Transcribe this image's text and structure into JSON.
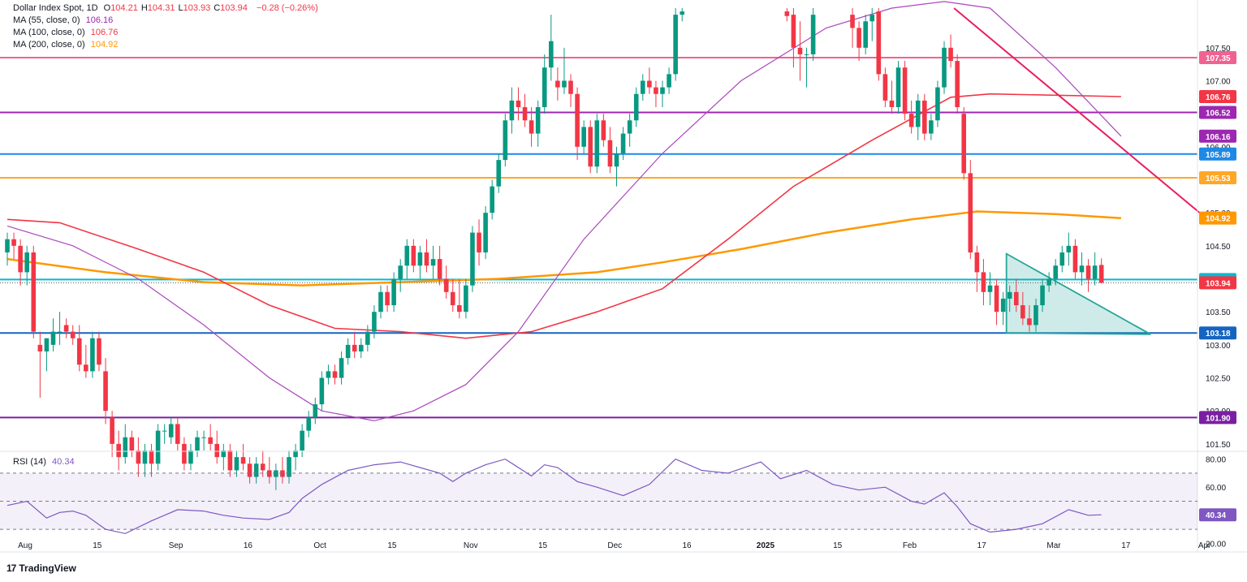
{
  "header": {
    "symbol": "Dollar Index Spot, 1D",
    "ohlc": [
      {
        "k": "O",
        "v": "104.21"
      },
      {
        "k": "H",
        "v": "104.31"
      },
      {
        "k": "L",
        "v": "103.93"
      },
      {
        "k": "C",
        "v": "103.94"
      }
    ],
    "change": "−0.28 (−0.26%)",
    "ma": [
      {
        "label": "MA (55, close, 0)",
        "value": "106.16",
        "color": "#9c27b0"
      },
      {
        "label": "MA (100, close, 0)",
        "value": "106.76",
        "color": "#f23645"
      },
      {
        "label": "MA (200, close, 0)",
        "value": "104.92",
        "color": "#ff9800"
      }
    ],
    "rsi_label": "RSI (14)",
    "rsi_value": "40.34"
  },
  "branding": {
    "name": "TradingView"
  },
  "chart_data": {
    "type": "candlestick",
    "ylim": [
      101.4,
      108.1
    ],
    "x_ticks": [
      "Aug",
      "15",
      "Sep",
      "16",
      "Oct",
      "15",
      "Nov",
      "15",
      "Dec",
      "16",
      "2025",
      "15",
      "Feb",
      "17",
      "Mar",
      "17",
      "Apr",
      "11"
    ],
    "x_tick_pos": [
      0,
      11,
      23,
      34,
      45,
      56,
      68,
      79,
      90,
      101,
      113,
      124,
      135,
      146,
      157,
      168,
      180,
      191
    ],
    "y_ticks": [
      "107.50",
      "107.00",
      "106.00",
      "105.00",
      "104.50",
      "103.50",
      "103.00",
      "102.50",
      "102.00",
      "101.50"
    ],
    "horizontal_levels": [
      {
        "value": 107.35,
        "label": "107.35",
        "color": "#f06292"
      },
      {
        "value": 106.52,
        "label": "106.52",
        "color": "#9c27b0"
      },
      {
        "value": 105.89,
        "label": "105.89",
        "color": "#1e88e5"
      },
      {
        "value": 105.53,
        "label": "105.53",
        "color": "#ffa726"
      },
      {
        "value": 103.99,
        "label": "103.99",
        "color": "#00bcd4"
      },
      {
        "value": 103.18,
        "label": "103.18",
        "color": "#1565c0"
      },
      {
        "value": 101.9,
        "label": "101.90",
        "color": "#7b1fa2"
      }
    ],
    "price_tags": [
      {
        "value": 106.76,
        "label": "106.76",
        "color": "#f23645"
      },
      {
        "value": 106.16,
        "label": "106.16",
        "color": "#9c27b0"
      },
      {
        "value": 104.92,
        "label": "104.92",
        "color": "#ff9800"
      },
      {
        "value": 103.94,
        "label": "103.94",
        "color": "#f23645"
      }
    ],
    "close_price": 103.94,
    "candles": [
      {
        "i": 0,
        "o": 104.4,
        "h": 104.7,
        "l": 104.2,
        "c": 104.6
      },
      {
        "i": 1,
        "o": 104.6,
        "h": 104.7,
        "l": 104.3,
        "c": 104.5
      },
      {
        "i": 2,
        "o": 104.5,
        "h": 104.6,
        "l": 103.9,
        "c": 104.1
      },
      {
        "i": 3,
        "o": 104.1,
        "h": 104.5,
        "l": 103.9,
        "c": 104.4
      },
      {
        "i": 4,
        "o": 104.4,
        "h": 104.5,
        "l": 103.1,
        "c": 103.2
      },
      {
        "i": 5,
        "o": 103.0,
        "h": 103.2,
        "l": 102.2,
        "c": 102.9
      },
      {
        "i": 6,
        "o": 102.9,
        "h": 103.1,
        "l": 102.6,
        "c": 103.1
      },
      {
        "i": 7,
        "o": 103.0,
        "h": 103.4,
        "l": 102.9,
        "c": 103.2
      },
      {
        "i": 8,
        "o": 103.2,
        "h": 103.5,
        "l": 103.0,
        "c": 103.2
      },
      {
        "i": 9,
        "o": 103.3,
        "h": 103.4,
        "l": 103.1,
        "c": 103.2
      },
      {
        "i": 10,
        "o": 103.2,
        "h": 103.3,
        "l": 103.0,
        "c": 103.1
      },
      {
        "i": 11,
        "o": 103.1,
        "h": 103.3,
        "l": 102.6,
        "c": 102.7
      },
      {
        "i": 12,
        "o": 102.7,
        "h": 103.0,
        "l": 102.5,
        "c": 102.6
      },
      {
        "i": 13,
        "o": 102.6,
        "h": 103.2,
        "l": 102.5,
        "c": 103.1
      },
      {
        "i": 14,
        "o": 103.1,
        "h": 103.2,
        "l": 102.6,
        "c": 102.7
      },
      {
        "i": 15,
        "o": 102.6,
        "h": 102.8,
        "l": 101.8,
        "c": 102.0
      },
      {
        "i": 16,
        "o": 101.9,
        "h": 102.0,
        "l": 101.3,
        "c": 101.5
      },
      {
        "i": 17,
        "o": 101.5,
        "h": 101.7,
        "l": 101.1,
        "c": 101.3
      },
      {
        "i": 18,
        "o": 101.3,
        "h": 101.8,
        "l": 101.2,
        "c": 101.6
      },
      {
        "i": 19,
        "o": 101.6,
        "h": 101.7,
        "l": 101.3,
        "c": 101.4
      },
      {
        "i": 20,
        "o": 101.4,
        "h": 101.6,
        "l": 101.0,
        "c": 101.2
      },
      {
        "i": 21,
        "o": 101.2,
        "h": 101.5,
        "l": 101.0,
        "c": 101.4
      },
      {
        "i": 22,
        "o": 101.4,
        "h": 101.5,
        "l": 101.0,
        "c": 101.2
      },
      {
        "i": 23,
        "o": 101.2,
        "h": 101.8,
        "l": 101.1,
        "c": 101.7
      },
      {
        "i": 24,
        "o": 101.7,
        "h": 101.8,
        "l": 101.5,
        "c": 101.7
      },
      {
        "i": 25,
        "o": 101.6,
        "h": 101.9,
        "l": 101.5,
        "c": 101.8
      },
      {
        "i": 26,
        "o": 101.8,
        "h": 101.9,
        "l": 101.4,
        "c": 101.5
      },
      {
        "i": 27,
        "o": 101.5,
        "h": 101.6,
        "l": 101.1,
        "c": 101.2
      },
      {
        "i": 28,
        "o": 101.2,
        "h": 101.5,
        "l": 101.1,
        "c": 101.4
      },
      {
        "i": 29,
        "o": 101.4,
        "h": 101.7,
        "l": 101.3,
        "c": 101.6
      },
      {
        "i": 30,
        "o": 101.6,
        "h": 101.7,
        "l": 101.4,
        "c": 101.6
      },
      {
        "i": 31,
        "o": 101.6,
        "h": 101.8,
        "l": 101.4,
        "c": 101.5
      },
      {
        "i": 32,
        "o": 101.5,
        "h": 101.7,
        "l": 101.2,
        "c": 101.3
      },
      {
        "i": 33,
        "o": 101.3,
        "h": 101.5,
        "l": 101.1,
        "c": 101.4
      },
      {
        "i": 34,
        "o": 101.4,
        "h": 101.5,
        "l": 101.0,
        "c": 101.1
      },
      {
        "i": 35,
        "o": 101.1,
        "h": 101.4,
        "l": 101.0,
        "c": 101.3
      },
      {
        "i": 36,
        "o": 101.3,
        "h": 101.5,
        "l": 101.1,
        "c": 101.2
      },
      {
        "i": 37,
        "o": 101.2,
        "h": 101.3,
        "l": 100.9,
        "c": 101.0
      },
      {
        "i": 38,
        "o": 101.0,
        "h": 101.3,
        "l": 100.9,
        "c": 101.2
      },
      {
        "i": 39,
        "o": 101.2,
        "h": 101.4,
        "l": 101.0,
        "c": 101.1
      },
      {
        "i": 40,
        "o": 101.1,
        "h": 101.3,
        "l": 100.9,
        "c": 101.0
      },
      {
        "i": 41,
        "o": 101.0,
        "h": 101.2,
        "l": 100.8,
        "c": 101.1
      },
      {
        "i": 42,
        "o": 101.1,
        "h": 101.3,
        "l": 100.9,
        "c": 101.0
      },
      {
        "i": 43,
        "o": 101.0,
        "h": 101.4,
        "l": 100.9,
        "c": 101.3
      },
      {
        "i": 44,
        "o": 101.3,
        "h": 101.5,
        "l": 101.1,
        "c": 101.4
      },
      {
        "i": 45,
        "o": 101.4,
        "h": 101.8,
        "l": 101.3,
        "c": 101.7
      },
      {
        "i": 46,
        "o": 101.7,
        "h": 102.0,
        "l": 101.6,
        "c": 101.9
      },
      {
        "i": 47,
        "o": 101.9,
        "h": 102.2,
        "l": 101.8,
        "c": 102.1
      },
      {
        "i": 48,
        "o": 102.1,
        "h": 102.6,
        "l": 102.0,
        "c": 102.5
      },
      {
        "i": 49,
        "o": 102.5,
        "h": 102.7,
        "l": 102.4,
        "c": 102.6
      },
      {
        "i": 50,
        "o": 102.6,
        "h": 102.7,
        "l": 102.4,
        "c": 102.5
      },
      {
        "i": 51,
        "o": 102.5,
        "h": 102.9,
        "l": 102.4,
        "c": 102.8
      },
      {
        "i": 52,
        "o": 102.8,
        "h": 103.1,
        "l": 102.7,
        "c": 103.0
      },
      {
        "i": 53,
        "o": 103.0,
        "h": 103.2,
        "l": 102.8,
        "c": 102.9
      },
      {
        "i": 54,
        "o": 102.9,
        "h": 103.1,
        "l": 102.8,
        "c": 103.0
      },
      {
        "i": 55,
        "o": 103.0,
        "h": 103.3,
        "l": 102.9,
        "c": 103.2
      },
      {
        "i": 56,
        "o": 103.2,
        "h": 103.6,
        "l": 103.1,
        "c": 103.5
      },
      {
        "i": 57,
        "o": 103.5,
        "h": 103.9,
        "l": 103.4,
        "c": 103.8
      },
      {
        "i": 58,
        "o": 103.8,
        "h": 103.9,
        "l": 103.5,
        "c": 103.6
      },
      {
        "i": 59,
        "o": 103.6,
        "h": 104.1,
        "l": 103.5,
        "c": 104.0
      },
      {
        "i": 60,
        "o": 104.0,
        "h": 104.3,
        "l": 103.8,
        "c": 104.2
      },
      {
        "i": 61,
        "o": 104.2,
        "h": 104.6,
        "l": 104.0,
        "c": 104.5
      },
      {
        "i": 62,
        "o": 104.5,
        "h": 104.6,
        "l": 104.1,
        "c": 104.2
      },
      {
        "i": 63,
        "o": 104.2,
        "h": 104.5,
        "l": 104.0,
        "c": 104.4
      },
      {
        "i": 64,
        "o": 104.4,
        "h": 104.6,
        "l": 104.1,
        "c": 104.2
      },
      {
        "i": 65,
        "o": 104.2,
        "h": 104.5,
        "l": 104.0,
        "c": 104.3
      },
      {
        "i": 66,
        "o": 104.3,
        "h": 104.5,
        "l": 103.9,
        "c": 104.0
      },
      {
        "i": 67,
        "o": 104.0,
        "h": 104.2,
        "l": 103.7,
        "c": 103.8
      },
      {
        "i": 68,
        "o": 103.8,
        "h": 104.0,
        "l": 103.5,
        "c": 103.6
      },
      {
        "i": 69,
        "o": 103.6,
        "h": 104.0,
        "l": 103.4,
        "c": 103.5
      },
      {
        "i": 70,
        "o": 103.5,
        "h": 104.0,
        "l": 103.4,
        "c": 103.9
      },
      {
        "i": 71,
        "o": 103.9,
        "h": 104.8,
        "l": 103.8,
        "c": 104.7
      },
      {
        "i": 72,
        "o": 104.7,
        "h": 104.9,
        "l": 104.2,
        "c": 104.4
      },
      {
        "i": 73,
        "o": 104.4,
        "h": 105.1,
        "l": 104.3,
        "c": 105.0
      },
      {
        "i": 74,
        "o": 105.0,
        "h": 105.5,
        "l": 104.9,
        "c": 105.4
      },
      {
        "i": 75,
        "o": 105.4,
        "h": 105.9,
        "l": 105.3,
        "c": 105.8
      },
      {
        "i": 76,
        "o": 105.8,
        "h": 106.5,
        "l": 105.7,
        "c": 106.4
      },
      {
        "i": 77,
        "o": 106.4,
        "h": 106.9,
        "l": 106.2,
        "c": 106.7
      },
      {
        "i": 78,
        "o": 106.7,
        "h": 106.9,
        "l": 106.4,
        "c": 106.6
      },
      {
        "i": 79,
        "o": 106.6,
        "h": 106.8,
        "l": 106.3,
        "c": 106.4
      },
      {
        "i": 80,
        "o": 106.4,
        "h": 106.6,
        "l": 106.0,
        "c": 106.2
      },
      {
        "i": 81,
        "o": 106.2,
        "h": 106.7,
        "l": 106.0,
        "c": 106.6
      },
      {
        "i": 82,
        "o": 106.6,
        "h": 107.4,
        "l": 106.5,
        "c": 107.2
      },
      {
        "i": 83,
        "o": 107.2,
        "h": 108.0,
        "l": 107.0,
        "c": 107.6
      },
      {
        "i": 84,
        "o": 107.0,
        "h": 107.2,
        "l": 106.7,
        "c": 106.9
      },
      {
        "i": 85,
        "o": 106.9,
        "h": 107.5,
        "l": 106.8,
        "c": 107.0
      },
      {
        "i": 86,
        "o": 107.0,
        "h": 107.1,
        "l": 106.6,
        "c": 106.8
      },
      {
        "i": 87,
        "o": 106.8,
        "h": 106.9,
        "l": 105.8,
        "c": 106.0
      },
      {
        "i": 88,
        "o": 106.0,
        "h": 106.4,
        "l": 105.9,
        "c": 106.3
      },
      {
        "i": 89,
        "o": 106.3,
        "h": 106.4,
        "l": 105.6,
        "c": 105.7
      },
      {
        "i": 90,
        "o": 105.7,
        "h": 106.5,
        "l": 105.6,
        "c": 106.4
      },
      {
        "i": 91,
        "o": 106.4,
        "h": 106.5,
        "l": 106.0,
        "c": 106.1
      },
      {
        "i": 92,
        "o": 106.1,
        "h": 106.3,
        "l": 105.6,
        "c": 105.7
      },
      {
        "i": 93,
        "o": 105.7,
        "h": 106.0,
        "l": 105.4,
        "c": 105.9
      },
      {
        "i": 94,
        "o": 105.9,
        "h": 106.3,
        "l": 105.8,
        "c": 106.2
      },
      {
        "i": 95,
        "o": 106.2,
        "h": 106.5,
        "l": 106.0,
        "c": 106.4
      },
      {
        "i": 96,
        "o": 106.4,
        "h": 106.9,
        "l": 106.3,
        "c": 106.8
      },
      {
        "i": 97,
        "o": 106.8,
        "h": 107.1,
        "l": 106.7,
        "c": 107.0
      },
      {
        "i": 98,
        "o": 107.0,
        "h": 107.2,
        "l": 106.8,
        "c": 106.9
      },
      {
        "i": 99,
        "o": 106.9,
        "h": 107.0,
        "l": 106.6,
        "c": 106.8
      },
      {
        "i": 100,
        "o": 106.8,
        "h": 107.0,
        "l": 106.6,
        "c": 106.9
      },
      {
        "i": 101,
        "o": 106.9,
        "h": 107.2,
        "l": 106.8,
        "c": 107.1
      },
      {
        "i": 102,
        "o": 107.1,
        "h": 108.1,
        "l": 107.0,
        "c": 108.0
      },
      {
        "i": 103,
        "o": 108.0,
        "h": 108.1,
        "l": 107.9,
        "c": 108.05
      },
      {
        "i": 119,
        "o": 108.05,
        "h": 108.1,
        "l": 107.9,
        "c": 107.98
      },
      {
        "i": 120,
        "o": 108.0,
        "h": 108.1,
        "l": 107.2,
        "c": 107.5
      },
      {
        "i": 121,
        "o": 107.5,
        "h": 107.9,
        "l": 107.0,
        "c": 107.4
      },
      {
        "i": 122,
        "o": 107.4,
        "h": 107.5,
        "l": 106.9,
        "c": 107.4
      },
      {
        "i": 123,
        "o": 107.4,
        "h": 108.1,
        "l": 107.3,
        "c": 108.0
      },
      {
        "i": 129,
        "o": 108.0,
        "h": 108.1,
        "l": 107.5,
        "c": 107.8
      },
      {
        "i": 130,
        "o": 107.8,
        "h": 107.9,
        "l": 107.3,
        "c": 107.5
      },
      {
        "i": 131,
        "o": 107.5,
        "h": 108.0,
        "l": 107.4,
        "c": 107.9
      },
      {
        "i": 132,
        "o": 107.9,
        "h": 108.1,
        "l": 107.6,
        "c": 108.0
      },
      {
        "i": 133,
        "o": 108.05,
        "h": 108.1,
        "l": 107.0,
        "c": 107.1
      },
      {
        "i": 134,
        "o": 107.1,
        "h": 107.2,
        "l": 106.6,
        "c": 106.7
      },
      {
        "i": 135,
        "o": 106.7,
        "h": 107.0,
        "l": 106.5,
        "c": 106.6
      },
      {
        "i": 136,
        "o": 106.6,
        "h": 107.3,
        "l": 106.5,
        "c": 107.2
      },
      {
        "i": 137,
        "o": 107.2,
        "h": 107.3,
        "l": 106.4,
        "c": 106.5
      },
      {
        "i": 138,
        "o": 106.5,
        "h": 106.7,
        "l": 106.2,
        "c": 106.3
      },
      {
        "i": 139,
        "o": 106.3,
        "h": 106.8,
        "l": 106.1,
        "c": 106.7
      },
      {
        "i": 140,
        "o": 106.7,
        "h": 106.8,
        "l": 106.1,
        "c": 106.2
      },
      {
        "i": 141,
        "o": 106.2,
        "h": 106.5,
        "l": 106.1,
        "c": 106.4
      },
      {
        "i": 142,
        "o": 106.4,
        "h": 107.0,
        "l": 106.3,
        "c": 106.9
      },
      {
        "i": 143,
        "o": 106.9,
        "h": 107.6,
        "l": 106.8,
        "c": 107.5
      },
      {
        "i": 144,
        "o": 107.5,
        "h": 107.7,
        "l": 107.2,
        "c": 107.3
      },
      {
        "i": 145,
        "o": 107.3,
        "h": 107.4,
        "l": 106.5,
        "c": 106.6
      },
      {
        "i": 146,
        "o": 106.5,
        "h": 106.6,
        "l": 105.5,
        "c": 105.6
      },
      {
        "i": 147,
        "o": 105.6,
        "h": 105.8,
        "l": 104.3,
        "c": 104.4
      },
      {
        "i": 148,
        "o": 104.4,
        "h": 104.5,
        "l": 103.8,
        "c": 104.1
      },
      {
        "i": 149,
        "o": 104.1,
        "h": 104.3,
        "l": 103.6,
        "c": 103.8
      },
      {
        "i": 150,
        "o": 103.8,
        "h": 104.1,
        "l": 103.6,
        "c": 103.9
      },
      {
        "i": 151,
        "o": 103.9,
        "h": 104.0,
        "l": 103.3,
        "c": 103.5
      },
      {
        "i": 152,
        "o": 103.5,
        "h": 103.8,
        "l": 103.3,
        "c": 103.7
      },
      {
        "i": 153,
        "o": 103.7,
        "h": 103.9,
        "l": 103.5,
        "c": 103.8
      },
      {
        "i": 154,
        "o": 103.8,
        "h": 104.0,
        "l": 103.5,
        "c": 103.6
      },
      {
        "i": 155,
        "o": 103.6,
        "h": 103.8,
        "l": 103.3,
        "c": 103.4
      },
      {
        "i": 156,
        "o": 103.4,
        "h": 103.6,
        "l": 103.2,
        "c": 103.3
      },
      {
        "i": 157,
        "o": 103.3,
        "h": 103.7,
        "l": 103.2,
        "c": 103.6
      },
      {
        "i": 158,
        "o": 103.6,
        "h": 104.0,
        "l": 103.5,
        "c": 103.9
      },
      {
        "i": 159,
        "o": 103.9,
        "h": 104.1,
        "l": 103.8,
        "c": 104.0
      },
      {
        "i": 160,
        "o": 104.0,
        "h": 104.3,
        "l": 103.9,
        "c": 104.2
      },
      {
        "i": 161,
        "o": 104.2,
        "h": 104.5,
        "l": 104.1,
        "c": 104.4
      },
      {
        "i": 162,
        "o": 104.4,
        "h": 104.7,
        "l": 104.2,
        "c": 104.5
      },
      {
        "i": 163,
        "o": 104.5,
        "h": 104.6,
        "l": 104.0,
        "c": 104.1
      },
      {
        "i": 164,
        "o": 104.1,
        "h": 104.4,
        "l": 103.9,
        "c": 104.2
      },
      {
        "i": 165,
        "o": 104.2,
        "h": 104.3,
        "l": 103.8,
        "c": 104.0
      },
      {
        "i": 166,
        "o": 104.0,
        "h": 104.4,
        "l": 103.9,
        "c": 104.2
      },
      {
        "i": 167,
        "o": 104.21,
        "h": 104.31,
        "l": 103.93,
        "c": 103.94
      }
    ],
    "rsi_ticks": [
      "80.00",
      "60.00",
      "20.00"
    ],
    "rsi_ylim": [
      15,
      85
    ],
    "rsi_bands": [
      30,
      50,
      70
    ]
  }
}
